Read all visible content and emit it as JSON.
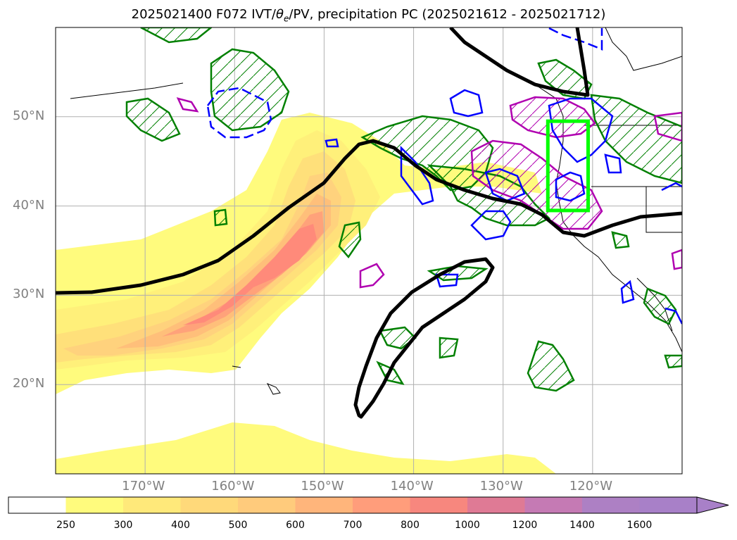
{
  "title": {
    "prefix": "2025021400 F072 IVT/",
    "theta": "θ",
    "theta_sub": "e",
    "suffix": "/PV, precipitation PC (2025021612 - 2025021712)"
  },
  "map": {
    "projection": "equirectangular",
    "lon_range": [
      -180,
      -110
    ],
    "lat_range": [
      10,
      60
    ],
    "lon_gridlines": [
      -170,
      -160,
      -150,
      -140,
      -130,
      -120
    ],
    "lat_gridlines": [
      20,
      30,
      40,
      50
    ],
    "lat_labels": [
      "20°N",
      "30°N",
      "40°N",
      "50°N"
    ],
    "lon_labels": [
      "170°W",
      "160°W",
      "150°W",
      "140°W",
      "130°W",
      "120°W"
    ],
    "highlight_box": {
      "lon": [
        -125,
        -120.5
      ],
      "lat": [
        39.5,
        49.5
      ],
      "color": "#00ff00"
    },
    "field_colors": {
      "ivt_shades": [
        "#fffb7d",
        "#fff07a",
        "#ffe07a",
        "#ffd27d",
        "#ffbf7a",
        "#ffa27a",
        "#ff8a7a",
        "#e9798a",
        "#cc7ab2",
        "#a880c8"
      ],
      "precip_contour": "#008000",
      "pv_contour": "#0000ff",
      "theta_contour": "#b000b0",
      "ivt_contour": "#000000"
    }
  },
  "colorbar": {
    "levels": [
      "250",
      "300",
      "400",
      "500",
      "600",
      "700",
      "800",
      "1000",
      "1200",
      "1400",
      "1600"
    ],
    "colors": [
      "#ffffff",
      "#fffb7d",
      "#ffe97a",
      "#ffd97a",
      "#ffcb7c",
      "#ffb57b",
      "#ff9d7b",
      "#f7877e",
      "#df7a95",
      "#c57ab4",
      "#ad80c4",
      "#a880c8"
    ],
    "extend": "max"
  }
}
